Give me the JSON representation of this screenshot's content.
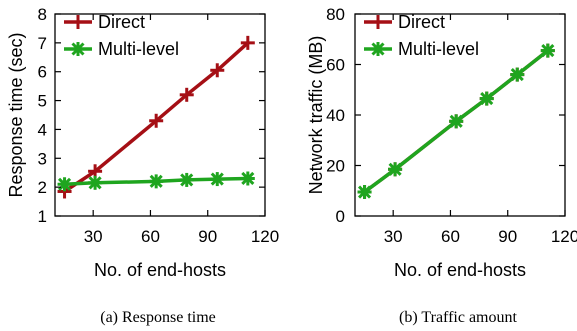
{
  "colors": {
    "direct": "#a50f15",
    "multilevel": "#1fa51f"
  },
  "chart_data": [
    {
      "type": "line",
      "caption": "(a) Response time",
      "xlabel": "No. of end-hosts",
      "ylabel": "Response time (sec)",
      "xlim": [
        10,
        120
      ],
      "ylim": [
        1,
        8
      ],
      "xticks": [
        30,
        60,
        90,
        120
      ],
      "yticks": [
        1,
        2,
        3,
        4,
        5,
        6,
        7,
        8
      ],
      "legend_position": "top-left",
      "series": [
        {
          "name": "Direct",
          "marker": "plus",
          "x": [
            15,
            31,
            63,
            79,
            95,
            111
          ],
          "y": [
            1.85,
            2.55,
            4.3,
            5.2,
            6.05,
            7.0
          ]
        },
        {
          "name": "Multi-level",
          "marker": "asterisk",
          "x": [
            15,
            31,
            63,
            79,
            95,
            111
          ],
          "y": [
            2.1,
            2.15,
            2.2,
            2.25,
            2.28,
            2.3
          ]
        }
      ]
    },
    {
      "type": "line",
      "caption": "(b) Traffic amount",
      "xlabel": "No. of end-hosts",
      "ylabel": "Network traffic (MB)",
      "xlim": [
        10,
        120
      ],
      "ylim": [
        0,
        80
      ],
      "xticks": [
        30,
        60,
        90,
        120
      ],
      "yticks": [
        0,
        20,
        40,
        60,
        80
      ],
      "legend_position": "top-left",
      "series": [
        {
          "name": "Direct",
          "marker": "plus",
          "x": [
            15,
            31,
            63,
            79,
            95,
            111
          ],
          "y": [
            9.5,
            18.5,
            37.5,
            46.5,
            56.0,
            65.5
          ]
        },
        {
          "name": "Multi-level",
          "marker": "asterisk",
          "x": [
            15,
            31,
            63,
            79,
            95,
            111
          ],
          "y": [
            9.5,
            18.5,
            37.5,
            46.5,
            56.0,
            65.5
          ]
        }
      ]
    }
  ]
}
